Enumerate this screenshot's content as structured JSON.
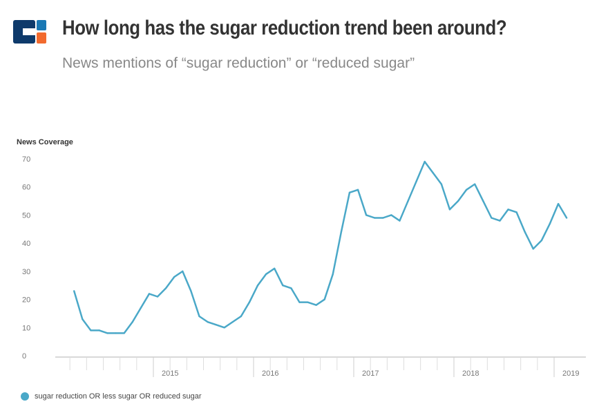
{
  "header": {
    "title": "How long has the sugar reduction trend been around?",
    "subtitle": "News mentions of “sugar reduction” or “reduced sugar”"
  },
  "colors": {
    "line": "#4aa8c8",
    "logo_navy": "#0e3a6b",
    "logo_blue": "#1a78b4",
    "logo_orange": "#f26a2e"
  },
  "chart_data": {
    "type": "line",
    "title": "How long has the sugar reduction trend been around?",
    "subtitle": "News mentions of “sugar reduction” or “reduced sugar”",
    "ylabel": "News Coverage",
    "xlabel": "",
    "ylim": [
      0,
      70
    ],
    "yticks": [
      0,
      10,
      20,
      30,
      40,
      50,
      60,
      70
    ],
    "xticks": [
      "2015",
      "2016",
      "2017",
      "2018",
      "2019"
    ],
    "grid": false,
    "legend_position": "bottom-left",
    "series": [
      {
        "name": "sugar reduction OR less sugar OR reduced sugar",
        "x": [
          "2014-03",
          "2014-04",
          "2014-05",
          "2014-06",
          "2014-07",
          "2014-08",
          "2014-09",
          "2014-10",
          "2014-11",
          "2014-12",
          "2015-01",
          "2015-02",
          "2015-03",
          "2015-04",
          "2015-05",
          "2015-06",
          "2015-07",
          "2015-08",
          "2015-09",
          "2015-10",
          "2015-11",
          "2015-12",
          "2016-01",
          "2016-02",
          "2016-03",
          "2016-04",
          "2016-05",
          "2016-06",
          "2016-07",
          "2016-08",
          "2016-09",
          "2016-10",
          "2016-11",
          "2016-12",
          "2017-01",
          "2017-02",
          "2017-03",
          "2017-04",
          "2017-05",
          "2017-06",
          "2017-07",
          "2017-08",
          "2017-09",
          "2017-10",
          "2017-11",
          "2017-12",
          "2018-01",
          "2018-02",
          "2018-03",
          "2018-04",
          "2018-05",
          "2018-06",
          "2018-07",
          "2018-08",
          "2018-09",
          "2018-10",
          "2018-11",
          "2018-12",
          "2019-01",
          "2019-02"
        ],
        "values": [
          23,
          13,
          9,
          9,
          8,
          8,
          8,
          12,
          17,
          22,
          21,
          24,
          28,
          30,
          23,
          14,
          12,
          11,
          10,
          12,
          14,
          19,
          25,
          29,
          31,
          25,
          24,
          19,
          19,
          18,
          20,
          29,
          44,
          58,
          59,
          50,
          49,
          49,
          50,
          48,
          55,
          62,
          69,
          65,
          61,
          52,
          55,
          59,
          61,
          55,
          49,
          48,
          52,
          51,
          44,
          38,
          41,
          47,
          54,
          49
        ]
      }
    ]
  }
}
